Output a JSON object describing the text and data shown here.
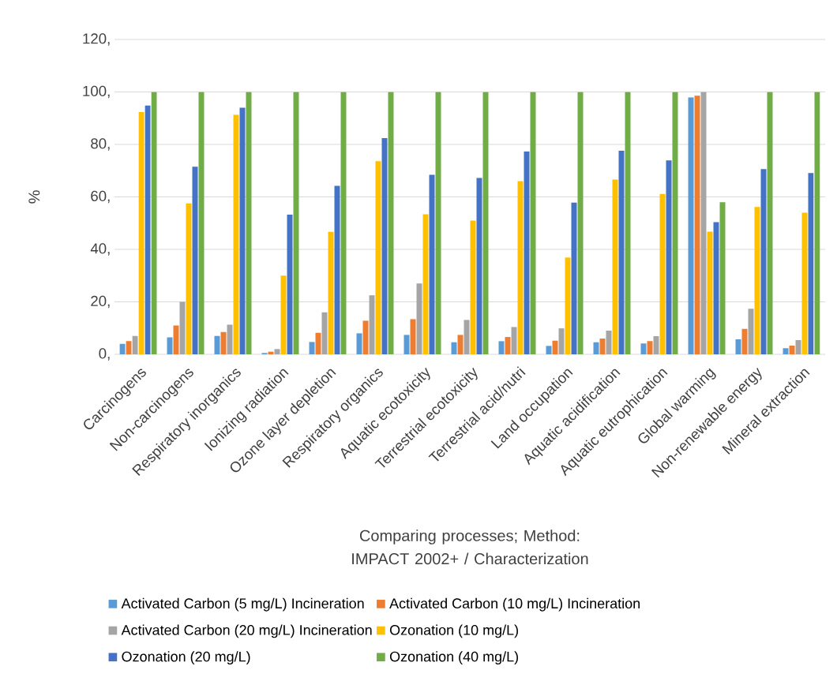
{
  "chart_data": {
    "type": "bar",
    "ylabel": "%",
    "xlabel": "Comparing processes; Method: IMPACT 2002+ / Characterization",
    "categories": [
      "Carcinogens",
      "Non-carcinogens",
      "Respiratory inorganics",
      "Ionizing radiation",
      "Ozone layer depletion",
      "Respiratory organics",
      "Aquatic ecotoxicity",
      "Terrestrial ecotoxicity",
      "Terrestrial acid/nutri",
      "Land occupation",
      "Aquatic acidification",
      "Aquatic eutrophication",
      "Global warming",
      "Non-renewable energy",
      "Mineral extraction"
    ],
    "series": [
      {
        "name": "Activated Carbon (5 mg/L) Incineration",
        "color": "#5b9bd5",
        "values": [
          4,
          6.5,
          7,
          0.5,
          4.7,
          8,
          7.4,
          4.6,
          5,
          3.2,
          4.6,
          4.1,
          98,
          5.7,
          2.3
        ]
      },
      {
        "name": "Activated Carbon (10 mg/L) Incineration",
        "color": "#ed7d31",
        "values": [
          5,
          11,
          8.5,
          1,
          8.2,
          12.8,
          13.4,
          7.4,
          6.6,
          5.2,
          6,
          5,
          98.6,
          9.7,
          3.3
        ]
      },
      {
        "name": "Activated Carbon (20 mg/L) Incineration",
        "color": "#a5a5a5",
        "values": [
          7,
          20,
          11.3,
          2,
          16,
          22.5,
          27,
          13.1,
          10.4,
          9.9,
          9,
          6.9,
          100,
          17.4,
          5.4
        ]
      },
      {
        "name": "Ozonation (10 mg/L)",
        "color": "#ffc000",
        "values": [
          92.3,
          57.5,
          91.3,
          30,
          46.7,
          73.6,
          53.4,
          51,
          66,
          36.9,
          66.6,
          61.1,
          46.8,
          56.2,
          54
        ]
      },
      {
        "name": "Ozonation (20 mg/L)",
        "color": "#4472c4",
        "values": [
          94.8,
          71.5,
          94,
          53.2,
          64.2,
          82.4,
          68.4,
          67.2,
          77.3,
          57.8,
          77.6,
          73.9,
          50.4,
          70.6,
          69.1
        ]
      },
      {
        "name": "Ozonation (40 mg/L)",
        "color": "#70ad47",
        "values": [
          100,
          100,
          100,
          100,
          100,
          100,
          100,
          100,
          100,
          100,
          100,
          100,
          58,
          100,
          100
        ]
      }
    ],
    "ylim": [
      0,
      120
    ],
    "yticks": [
      {
        "value": 0,
        "label": "0,"
      },
      {
        "value": 20,
        "label": "20,"
      },
      {
        "value": 40,
        "label": "40,"
      },
      {
        "value": 60,
        "label": "60,"
      },
      {
        "value": 80,
        "label": "80,"
      },
      {
        "value": 100,
        "label": "100,"
      },
      {
        "value": 120,
        "label": "120,"
      }
    ],
    "grid": "y",
    "legend": "bottom"
  }
}
